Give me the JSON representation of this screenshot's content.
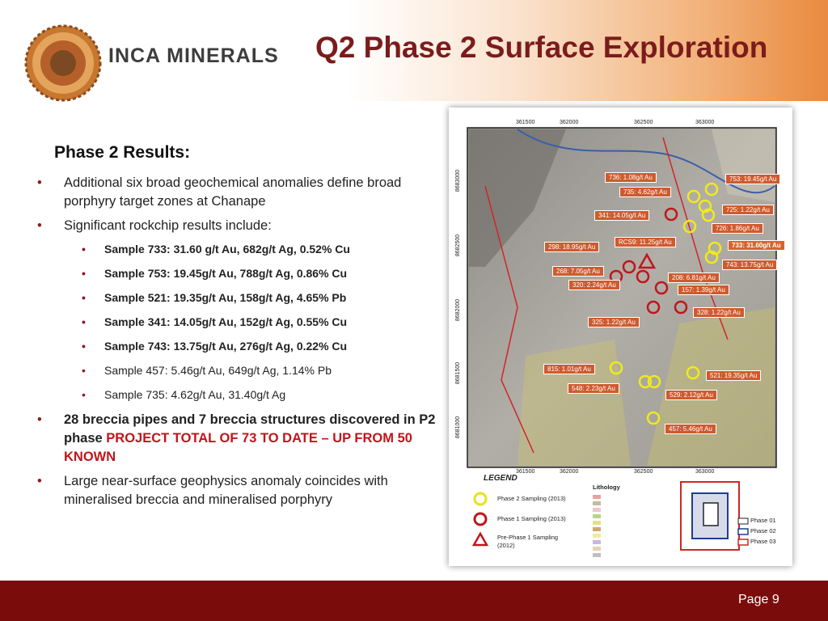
{
  "header": {
    "logo_text": "INCA MINERALS",
    "title": "Q2 Phase 2 Surface Exploration"
  },
  "content": {
    "heading": "Phase 2 Results:",
    "bullets": [
      {
        "text": "Additional six broad geochemical anomalies define broad porphyry target zones at Chanape"
      },
      {
        "text": "Significant rockchip results include:",
        "sub_items": [
          {
            "text": "Sample 733: 31.60 g/t Au, 682g/t Ag, 0.52% Cu",
            "bold": true
          },
          {
            "text": "Sample 753: 19.45g/t Au, 788g/t Ag, 0.86% Cu",
            "bold": true
          },
          {
            "text": "Sample 521: 19.35g/t Au, 158g/t Ag, 4.65% Pb",
            "bold": true
          },
          {
            "text": "Sample 341: 14.05g/t Au, 152g/t Ag, 0.55% Cu",
            "bold": true
          },
          {
            "text": "Sample 743: 13.75g/t Au, 276g/t Ag, 0.22% Cu",
            "bold": true
          },
          {
            "text": "Sample 457: 5.46g/t Au, 649g/t Ag, 1.14% Pb",
            "bold": false
          },
          {
            "text": "Sample 735: 4.62g/t Au, 31.40g/t Ag",
            "bold": false
          }
        ]
      },
      {
        "text": "28 breccia pipes and 7 breccia structures discovered in P2 phase",
        "highlight": "PROJECT TOTAL OF 73 TO DATE – UP FROM 50 KNOWN",
        "bold": true
      },
      {
        "text": "Large near-surface geophysics anomaly coincides with mineralised breccia and mineralised porphyry"
      }
    ]
  },
  "map": {
    "x_coords_top": [
      361500,
      362000,
      362500,
      363000
    ],
    "x_coords_bottom": [
      361500,
      362000,
      362500,
      363000
    ],
    "y_coords": [
      8683000,
      8682500,
      8682000,
      8681500,
      8681000
    ],
    "samples": [
      {
        "label": "736: 1.08g/t Au"
      },
      {
        "label": "753: 19.45g/t Au"
      },
      {
        "label": "735: 4.62g/t Au"
      },
      {
        "label": "725: 1.22g/t Au"
      },
      {
        "label": "341: 14.05g/t Au"
      },
      {
        "label": "726: 1.86g/t Au"
      },
      {
        "label": "298: 18.95g/t Au"
      },
      {
        "label": "RCS9: 11.25g/t Au"
      },
      {
        "label": "733: 31.60g/t Au"
      },
      {
        "label": "743: 13.75g/t Au"
      },
      {
        "label": "268: 7.05g/t Au"
      },
      {
        "label": "208: 6.81g/t Au"
      },
      {
        "label": "320: 2.24g/t Au"
      },
      {
        "label": "157: 1.39g/t Au"
      },
      {
        "label": "328: 1.22g/t Au"
      },
      {
        "label": "325: 1.22g/t Au"
      },
      {
        "label": "815: 1.01g/t Au"
      },
      {
        "label": "521: 19.35g/t Au"
      },
      {
        "label": "548: 2.23g/t Au"
      },
      {
        "label": "529: 2.12g/t Au"
      },
      {
        "label": "457: 5.46g/t Au"
      }
    ],
    "legend": {
      "title": "LEGEND",
      "items": [
        "Phase 2 Sampling (2013)",
        "Phase 1 Sampling (2013)",
        "Pre-Phase 1 Sampling (2012)"
      ],
      "lithology_title": "Lithology",
      "phases": [
        "Phase 01",
        "Phase 02",
        "Phase 03"
      ]
    }
  },
  "footer": {
    "page": "Page 9"
  }
}
